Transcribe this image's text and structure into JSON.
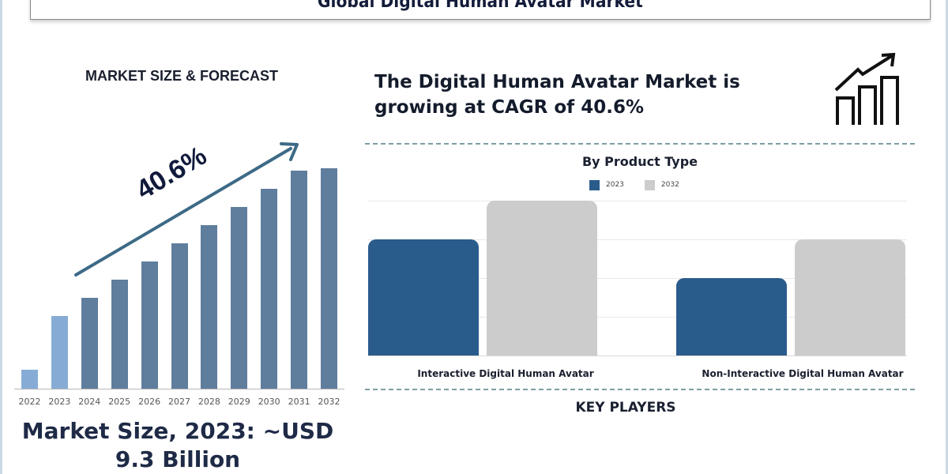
{
  "header": {
    "title": "Global Digital Human Avatar Market"
  },
  "left_panel": {
    "heading": "MARKET SIZE & FORECAST",
    "cagr_label": "40.6%",
    "market_size_line1": "Market Size, 2023: ~USD",
    "market_size_line2": "9.3 Billion"
  },
  "right_panel": {
    "headline_line1": "The Digital Human Avatar Market is",
    "headline_line2": "growing at CAGR of 40.6%",
    "icon": "growth-chart-icon",
    "product_type_title": "By Product Type",
    "key_players_title": "KEY PLAYERS"
  },
  "colors": {
    "title_text": "#141c3a",
    "forecast_bar": "#5f7d9d",
    "historic_bar": "#86acd6",
    "series_2023": "#2a5c8b",
    "series_2032": "#cccccc",
    "dashed_divider": "#7f9da4"
  },
  "chart_data": [
    {
      "type": "bar",
      "title": "MARKET SIZE & FORECAST",
      "categories": [
        "2022",
        "2023",
        "2024",
        "2025",
        "2026",
        "2027",
        "2028",
        "2029",
        "2030",
        "2031",
        "2032"
      ],
      "values": [
        24,
        92,
        115,
        138,
        161,
        184,
        207,
        230,
        253,
        276,
        279
      ],
      "value_units": "relative bar height (px, unlabeled axis)",
      "highlighted_historic": [
        "2022",
        "2023"
      ],
      "annotation": "40.6% (CAGR arrow)",
      "xlabel": "",
      "ylabel": "",
      "grid": false
    },
    {
      "type": "bar",
      "title": "By Product Type",
      "categories": [
        "Interactive Digital Human Avatar",
        "Non-Interactive Digital Human Avatar"
      ],
      "series": [
        {
          "name": "2023",
          "values": [
            3,
            2
          ]
        },
        {
          "name": "2032",
          "values": [
            4,
            3
          ]
        }
      ],
      "value_units": "relative (gridline units, unlabeled axis)",
      "ylim": [
        0,
        4
      ],
      "legend_position": "top",
      "grid": true
    }
  ]
}
